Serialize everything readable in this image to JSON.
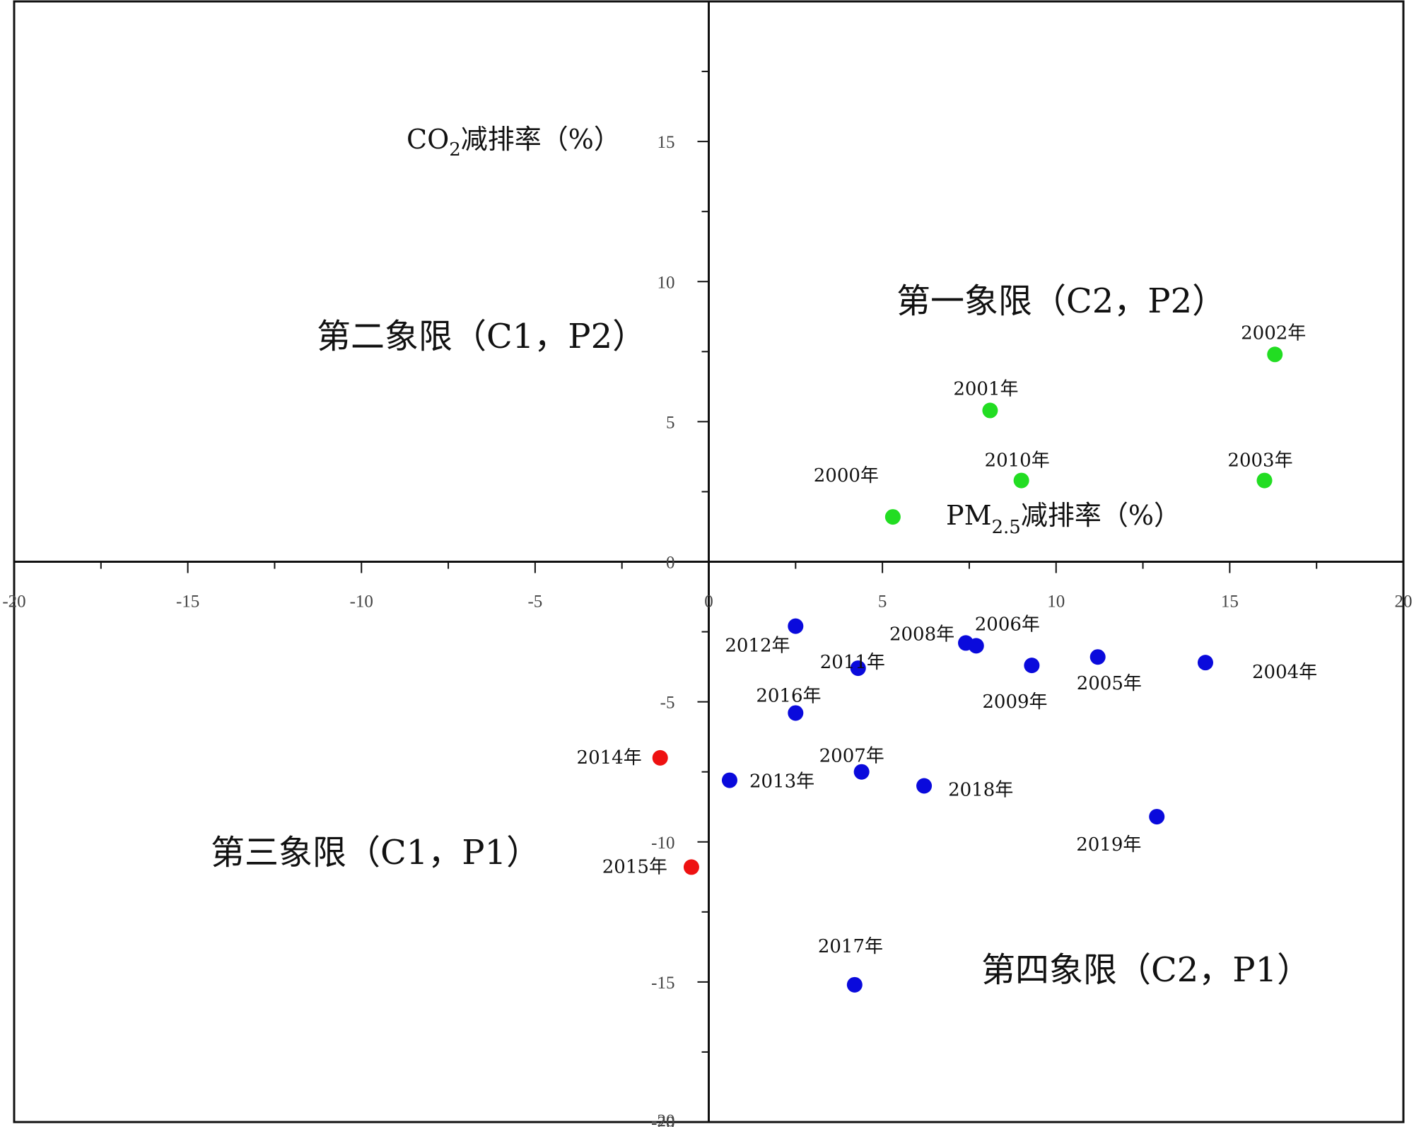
{
  "chart_data": {
    "type": "scatter",
    "xlim": [
      -20,
      20
    ],
    "ylim": [
      -20,
      20
    ],
    "x_ticks": [
      -20,
      -15,
      -10,
      -5,
      0,
      5,
      10,
      15,
      20
    ],
    "y_ticks": [
      -20,
      -15,
      -10,
      -5,
      0,
      5,
      10,
      15
    ],
    "xlabel": {
      "main": "PM",
      "sub": "2.5",
      "rest": "减排率（%）"
    },
    "ylabel": {
      "main": "CO",
      "sub": "2",
      "rest": "减排率（%）"
    },
    "quadrants": {
      "q1": "第一象限（C2，P2）",
      "q2": "第二象限（C1，P2）",
      "q3": "第三象限（C1，P1）",
      "q4": "第四象限（C2，P1）"
    },
    "colors": {
      "q1": "#22dd22",
      "q3": "#ee1111",
      "q4": "#0a0adc"
    },
    "points": [
      {
        "label": "2000年",
        "x": 5.3,
        "y": 1.6,
        "group": "q1"
      },
      {
        "label": "2001年",
        "x": 8.1,
        "y": 5.4,
        "group": "q1"
      },
      {
        "label": "2002年",
        "x": 16.3,
        "y": 7.4,
        "group": "q1"
      },
      {
        "label": "2003年",
        "x": 16.0,
        "y": 2.9,
        "group": "q1"
      },
      {
        "label": "2010年",
        "x": 9.0,
        "y": 2.9,
        "group": "q1"
      },
      {
        "label": "2004年",
        "x": 14.3,
        "y": -3.6,
        "group": "q4"
      },
      {
        "label": "2005年",
        "x": 11.2,
        "y": -3.4,
        "group": "q4"
      },
      {
        "label": "2006年",
        "x": 7.7,
        "y": -3.0,
        "group": "q4"
      },
      {
        "label": "2007年",
        "x": 4.4,
        "y": -7.5,
        "group": "q4"
      },
      {
        "label": "2008年",
        "x": 7.4,
        "y": -2.9,
        "group": "q4"
      },
      {
        "label": "2009年",
        "x": 9.3,
        "y": -3.7,
        "group": "q4"
      },
      {
        "label": "2011年",
        "x": 4.3,
        "y": -3.8,
        "group": "q4"
      },
      {
        "label": "2012年",
        "x": 2.5,
        "y": -2.3,
        "group": "q4"
      },
      {
        "label": "2013年",
        "x": 0.6,
        "y": -7.8,
        "group": "q4"
      },
      {
        "label": "2016年",
        "x": 2.5,
        "y": -5.4,
        "group": "q4"
      },
      {
        "label": "2017年",
        "x": 4.2,
        "y": -15.1,
        "group": "q4"
      },
      {
        "label": "2018年",
        "x": 6.2,
        "y": -8.0,
        "group": "q4"
      },
      {
        "label": "2019年",
        "x": 12.9,
        "y": -9.1,
        "group": "q4"
      },
      {
        "label": "2014年",
        "x": -1.4,
        "y": -7.0,
        "group": "q3"
      },
      {
        "label": "2015年",
        "x": -0.5,
        "y": -10.9,
        "group": "q3"
      }
    ]
  }
}
